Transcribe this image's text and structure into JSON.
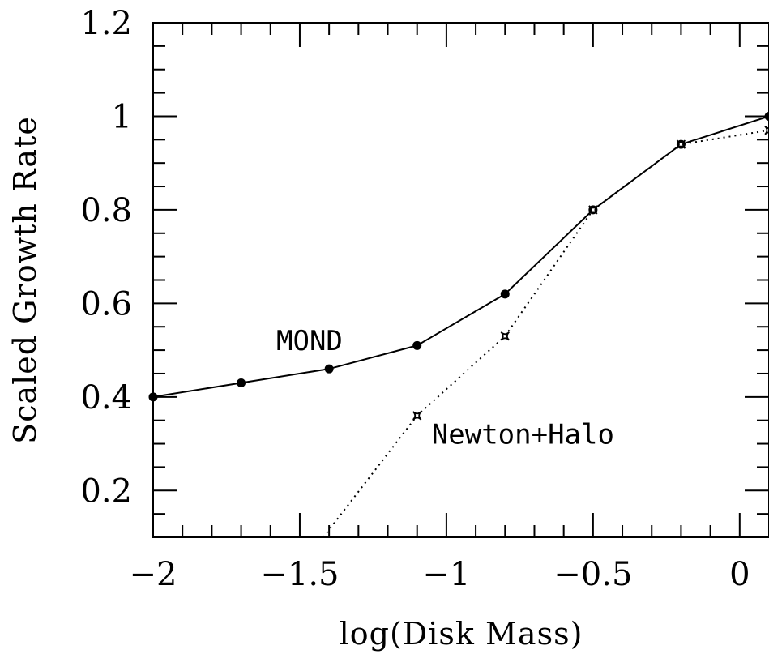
{
  "chart_data": {
    "type": "line",
    "xlabel": "log(Disk Mass)",
    "ylabel": "Scaled Growth Rate",
    "xlim": [
      -2,
      0.1
    ],
    "ylim": [
      0.1,
      1.2
    ],
    "x_ticks": [
      -2,
      -1.5,
      -1,
      -0.5,
      0
    ],
    "x_tick_labels": [
      "−2",
      "−1.5",
      "−1",
      "−0.5",
      "0"
    ],
    "y_ticks": [
      0.2,
      0.4,
      0.6,
      0.8,
      1,
      1.2
    ],
    "y_tick_labels": [
      "0.2",
      "0.4",
      "0.6",
      "0.8",
      "1",
      "1.2"
    ],
    "grid": false,
    "series": [
      {
        "name": "MOND",
        "line_style": "solid",
        "marker": "filled-circle",
        "x": [
          -2.0,
          -1.7,
          -1.4,
          -1.1,
          -0.8,
          -0.5,
          -0.2,
          0.1
        ],
        "y": [
          0.4,
          0.43,
          0.46,
          0.51,
          0.62,
          0.8,
          0.94,
          1.0
        ]
      },
      {
        "name": "Newton+Halo",
        "line_style": "dotted",
        "marker": "star",
        "x": [
          -1.1,
          -0.8,
          -0.5,
          -0.2,
          0.1
        ],
        "y": [
          0.36,
          0.53,
          0.8,
          0.94,
          0.97
        ],
        "extends_below_axis_to": [
          -1.42,
          0.1
        ]
      }
    ],
    "annotations": [
      "MOND",
      "Newton+Halo"
    ]
  }
}
